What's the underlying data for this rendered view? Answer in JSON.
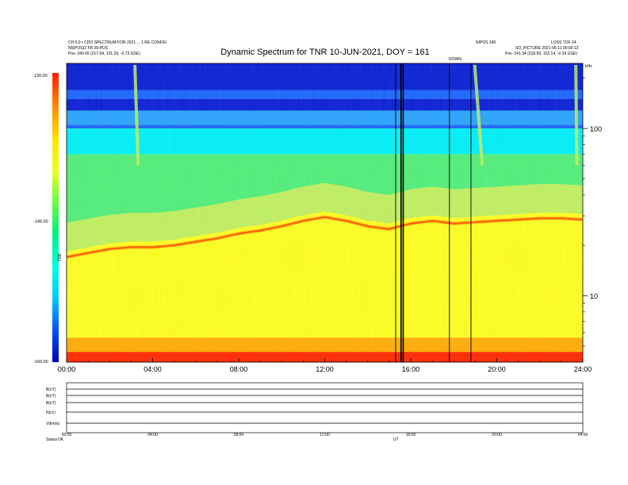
{
  "header": {
    "left_line1": "CH 0,0 • CDO SPECTRUM FOR 2021 ... 1 RE CONFIG",
    "left_line2": "N5(POS)2 FR 28-PDS",
    "left_line3": "Pos: 240.65 (217.64, 101.29, -0.73 GSE)",
    "right_line1": "N/POS 240",
    "right_line2": "LOSS TOF 24",
    "right_line3": "SO_PICTURE 2021-06-11 00:00:13",
    "right_line4": "Pos: 241.34 (218.59, 102.14, -0.39 GSE)",
    "corner_label": "kHz"
  },
  "colorbar": {
    "label": "TNR",
    "stops": [
      "#0000b4",
      "#0050ff",
      "#00c8ff",
      "#00ffe6",
      "#00f080",
      "#60ff40",
      "#e8ff20",
      "#ffe400",
      "#ff8c00",
      "#ff1e00"
    ]
  },
  "spectrogram_colors": {
    "deep_blue": "#0a1fd6",
    "blue": "#1a66ff",
    "light_blue": "#2aa4ff",
    "cyan": "#00f0f8",
    "green": "#52ef7a",
    "yellow_green": "#c0f060",
    "yellow": "#ffff20",
    "orange": "#ffa000",
    "red": "#ff2800",
    "tone_band": "#ff9900"
  },
  "vertical_marker_label": "DOWN",
  "bottom_panels": {
    "row_labels": [
      "B(nT)",
      "B(nT)",
      "B(nT)",
      "N(cc)",
      "V(km/s)"
    ],
    "footer_left": "Status",
    "footer_tag": "OK",
    "footer_center": "UT"
  },
  "chart_data": {
    "type": "heatmap",
    "title": "Dynamic Spectrum for TNR 10-JUN-2021, DOY = 161",
    "xlabel": "",
    "ylabel": "",
    "x_ticks": [
      "00:00",
      "04:00",
      "08:00",
      "12:00",
      "16:00",
      "20:00",
      "24:00"
    ],
    "x_range_hours": [
      0,
      24
    ],
    "y_scale": "log",
    "y_unit": "kHz",
    "y_ticks": [
      "100",
      "10"
    ],
    "y_tick_values": [
      100,
      10
    ],
    "y_range_khz": [
      4,
      245
    ],
    "colorbar_ticks": [
      "-130.00",
      "-145.00",
      "-160.00"
    ],
    "colorbar_range": [
      -160,
      -130
    ],
    "vertical_lines_hours": [
      15.3,
      15.55,
      15.65,
      17.8,
      18.8
    ],
    "tone_frequency_khz": [
      [
        0,
        17
      ],
      [
        1,
        18
      ],
      [
        2,
        19
      ],
      [
        3,
        19.5
      ],
      [
        4,
        19.5
      ],
      [
        5,
        20
      ],
      [
        6,
        21
      ],
      [
        7,
        22
      ],
      [
        8,
        23.5
      ],
      [
        9,
        24.5
      ],
      [
        10,
        26
      ],
      [
        11,
        28
      ],
      [
        12,
        29.5
      ],
      [
        13,
        28
      ],
      [
        14,
        26
      ],
      [
        15,
        25
      ],
      [
        16,
        27
      ],
      [
        17,
        28
      ],
      [
        18,
        27
      ],
      [
        19,
        27.5
      ],
      [
        20,
        28
      ],
      [
        21,
        28.5
      ],
      [
        22,
        29
      ],
      [
        23,
        29
      ],
      [
        24,
        28.5
      ]
    ],
    "bursts": [
      {
        "start_hour": 3.1,
        "end_hour": 3.4,
        "min_khz": 60,
        "max_khz": 240
      },
      {
        "start_hour": 18.9,
        "end_hour": 19.4,
        "min_khz": 60,
        "max_khz": 240
      },
      {
        "start_hour": 23.6,
        "end_hour": 23.8,
        "min_khz": 60,
        "max_khz": 240
      }
    ]
  }
}
